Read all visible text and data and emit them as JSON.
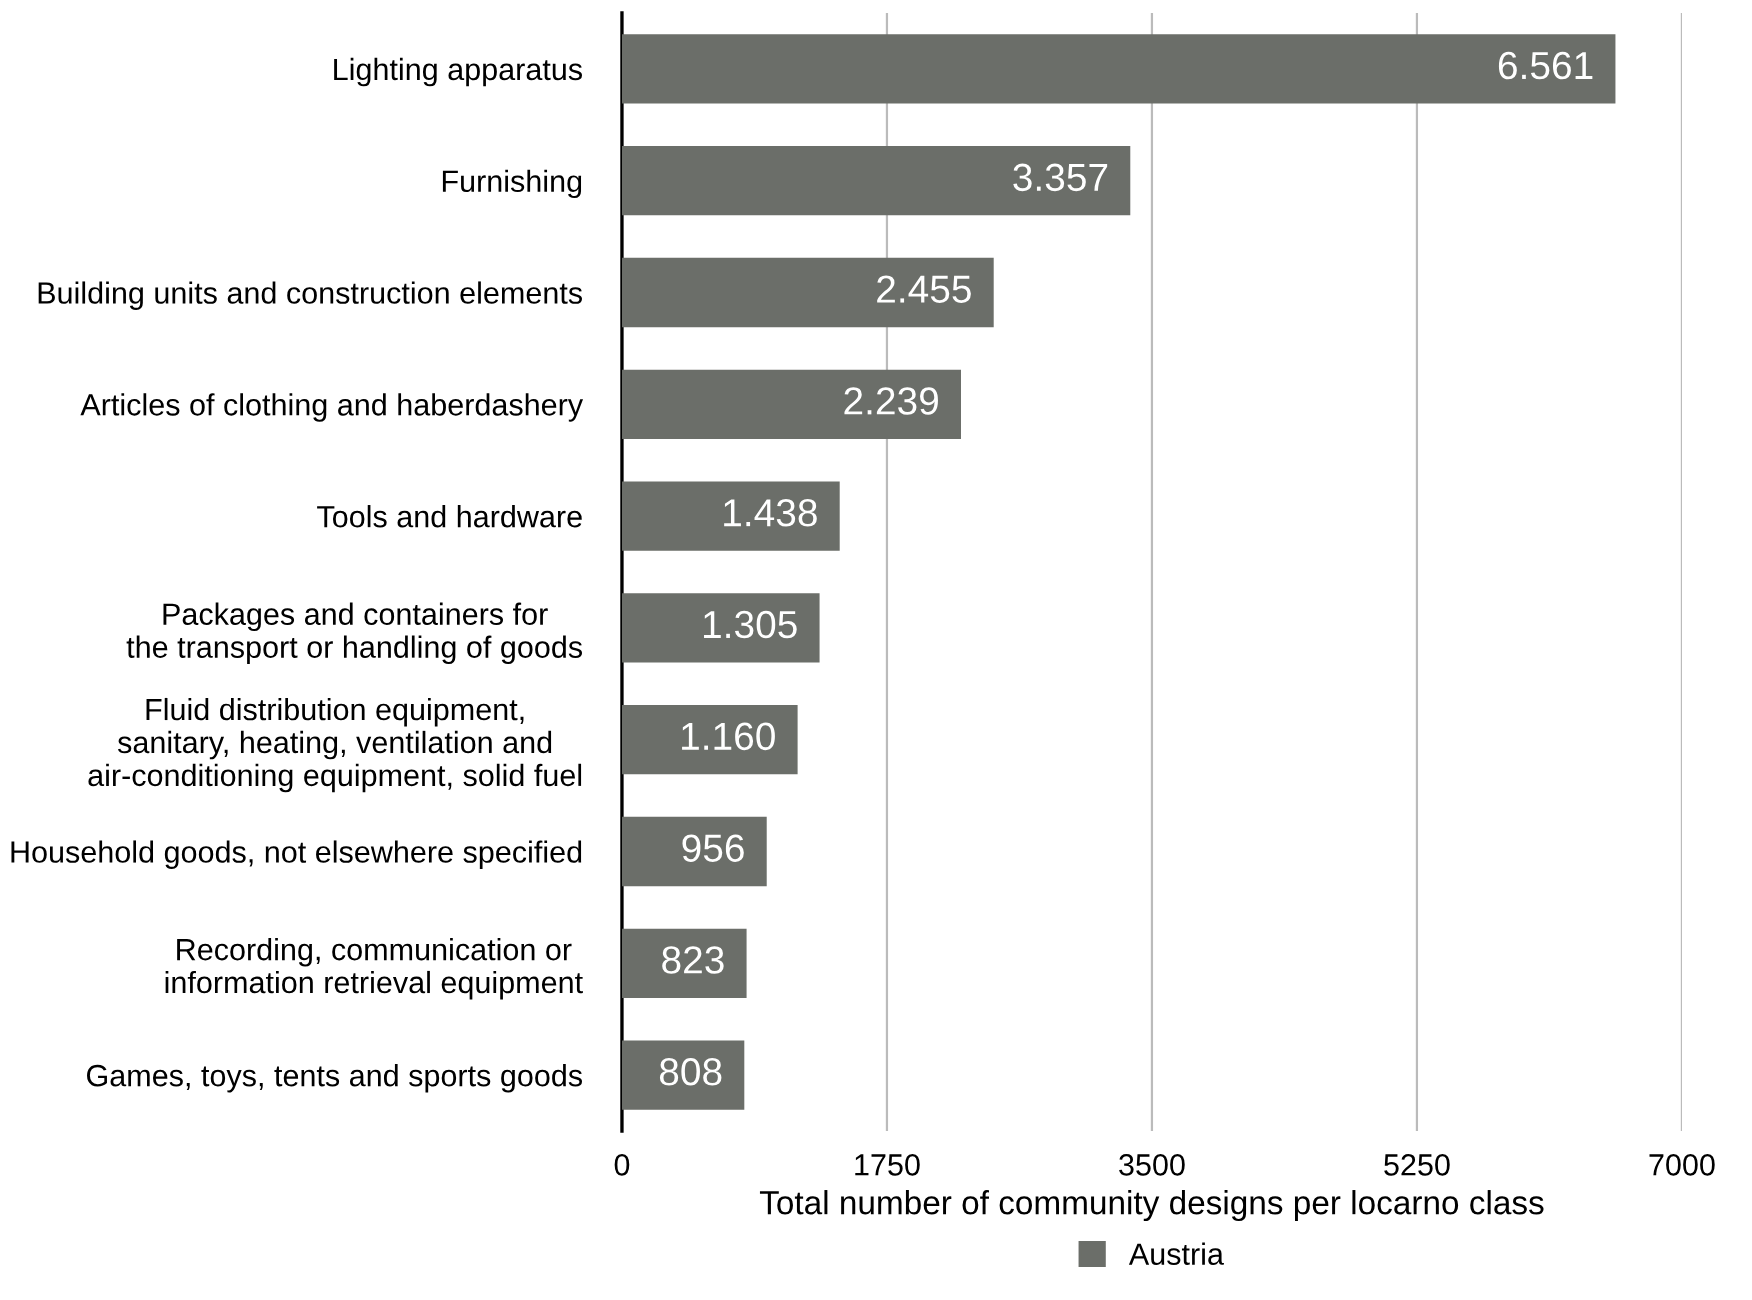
{
  "chart_data": {
    "type": "bar",
    "orientation": "horizontal",
    "xlabel": "Total number of community designs per locarno class",
    "categories": [
      "Lighting apparatus",
      "Furnishing",
      "Building units and construction elements",
      "Articles of clothing and haberdashery",
      "Tools and hardware",
      "Packages and containers for\nthe transport or handling of goods",
      "Fluid distribution equipment,\nsanitary, heating, ventilation and\nair-conditioning equipment, solid fuel",
      "Household goods, not elsewhere specified",
      "Recording, communication or\ninformation retrieval equipment",
      "Games, toys, tents and sports goods"
    ],
    "series": [
      {
        "name": "Austria",
        "color": "#6b6e69",
        "values": [
          6561,
          3357,
          2455,
          2239,
          1438,
          1305,
          1160,
          956,
          823,
          808
        ],
        "value_labels": [
          "6.561",
          "3.357",
          "2.455",
          "2.239",
          "1.438",
          "1.305",
          "1.160",
          "956",
          "823",
          "808"
        ]
      }
    ],
    "xlim": [
      0,
      7000
    ],
    "xticks": [
      0,
      1750,
      3500,
      5250,
      7000
    ],
    "grid": "x",
    "legend": "bottom"
  }
}
